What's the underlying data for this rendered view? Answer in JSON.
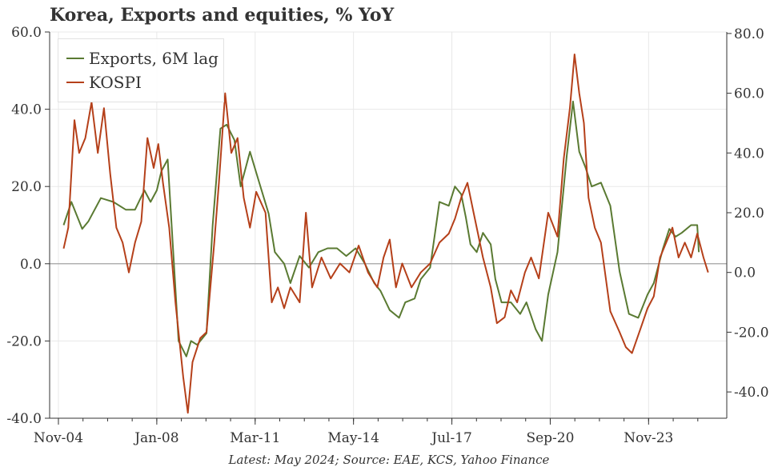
{
  "chart_data": {
    "type": "line",
    "title": "Korea, Exports and equities, % YoY",
    "footer": "Latest: May 2024; Source: EAE, KCS, Yahoo Finance",
    "xlabel": "",
    "x_ticks": [
      "Nov-04",
      "Jan-08",
      "Mar-11",
      "May-14",
      "Jul-17",
      "Sep-20",
      "Nov-23"
    ],
    "y_left": {
      "ylim": [
        -40,
        60
      ],
      "ticks": [
        "-40.0",
        "-20.0",
        "0.0",
        "20.0",
        "40.0",
        "60.0"
      ]
    },
    "y_right": {
      "ylim": [
        -48.8,
        80.5
      ],
      "ticks": [
        "-40.0",
        "-20.0",
        "0.0",
        "20.0",
        "40.0",
        "60.0",
        "80.0"
      ]
    },
    "grid": true,
    "legend": "top-left",
    "series": [
      {
        "name": "Exports, 6M lag",
        "axis": "left",
        "color": "#5a7a32",
        "points": [
          [
            2005.0,
            10.0
          ],
          [
            2005.25,
            16.0
          ],
          [
            2005.6,
            9.0
          ],
          [
            2005.8,
            11.0
          ],
          [
            2006.2,
            17.0
          ],
          [
            2006.6,
            16.0
          ],
          [
            2007.0,
            14.0
          ],
          [
            2007.3,
            14.0
          ],
          [
            2007.6,
            19.0
          ],
          [
            2007.8,
            16.0
          ],
          [
            2008.0,
            19.0
          ],
          [
            2008.15,
            24.0
          ],
          [
            2008.35,
            27.0
          ],
          [
            2008.7,
            -20.0
          ],
          [
            2008.95,
            -24.0
          ],
          [
            2009.1,
            -20.0
          ],
          [
            2009.3,
            -21.0
          ],
          [
            2009.6,
            -18.0
          ],
          [
            2009.8,
            10.0
          ],
          [
            2010.05,
            35.0
          ],
          [
            2010.25,
            36.0
          ],
          [
            2010.5,
            32.0
          ],
          [
            2010.7,
            20.0
          ],
          [
            2011.0,
            29.0
          ],
          [
            2011.3,
            21.0
          ],
          [
            2011.6,
            13.0
          ],
          [
            2011.8,
            3.0
          ],
          [
            2012.1,
            0.0
          ],
          [
            2012.3,
            -5.0
          ],
          [
            2012.6,
            2.0
          ],
          [
            2012.9,
            -1.0
          ],
          [
            2013.2,
            3.0
          ],
          [
            2013.5,
            4.0
          ],
          [
            2013.8,
            4.0
          ],
          [
            2014.1,
            2.0
          ],
          [
            2014.4,
            4.0
          ],
          [
            2014.7,
            0.0
          ],
          [
            2015.0,
            -5.0
          ],
          [
            2015.2,
            -7.0
          ],
          [
            2015.5,
            -12.0
          ],
          [
            2015.8,
            -14.0
          ],
          [
            2016.0,
            -10.0
          ],
          [
            2016.3,
            -9.0
          ],
          [
            2016.5,
            -4.0
          ],
          [
            2016.8,
            -1.0
          ],
          [
            2017.1,
            16.0
          ],
          [
            2017.4,
            15.0
          ],
          [
            2017.6,
            20.0
          ],
          [
            2017.8,
            18.0
          ],
          [
            2017.95,
            12.0
          ],
          [
            2018.1,
            5.0
          ],
          [
            2018.3,
            3.0
          ],
          [
            2018.5,
            8.0
          ],
          [
            2018.75,
            5.0
          ],
          [
            2018.9,
            -4.0
          ],
          [
            2019.1,
            -10.0
          ],
          [
            2019.4,
            -10.0
          ],
          [
            2019.7,
            -13.0
          ],
          [
            2019.9,
            -10.0
          ],
          [
            2020.2,
            -17.0
          ],
          [
            2020.4,
            -20.0
          ],
          [
            2020.6,
            -8.0
          ],
          [
            2020.9,
            3.0
          ],
          [
            2021.2,
            28.0
          ],
          [
            2021.4,
            42.0
          ],
          [
            2021.6,
            29.0
          ],
          [
            2021.8,
            25.0
          ],
          [
            2022.0,
            20.0
          ],
          [
            2022.3,
            21.0
          ],
          [
            2022.6,
            15.0
          ],
          [
            2022.9,
            -2.0
          ],
          [
            2023.2,
            -13.0
          ],
          [
            2023.5,
            -14.0
          ],
          [
            2023.8,
            -8.0
          ],
          [
            2024.0,
            -5.0
          ],
          [
            2024.3,
            4.0
          ],
          [
            2024.5,
            9.0
          ],
          [
            2024.7,
            7.0
          ],
          [
            2024.9,
            8.0
          ],
          [
            2025.2,
            10.0
          ],
          [
            2025.4,
            10.0
          ],
          [
            2025.45,
            3.0
          ]
        ]
      },
      {
        "name": "KOSPI",
        "axis": "right",
        "color": "#b5401a",
        "points": [
          [
            2005.0,
            8.0
          ],
          [
            2005.15,
            15.0
          ],
          [
            2005.35,
            51.0
          ],
          [
            2005.5,
            40.0
          ],
          [
            2005.7,
            45.0
          ],
          [
            2005.9,
            57.0
          ],
          [
            2006.1,
            40.0
          ],
          [
            2006.3,
            55.0
          ],
          [
            2006.5,
            33.0
          ],
          [
            2006.7,
            15.0
          ],
          [
            2006.9,
            10.0
          ],
          [
            2007.1,
            0.0
          ],
          [
            2007.3,
            10.0
          ],
          [
            2007.5,
            17.0
          ],
          [
            2007.7,
            45.0
          ],
          [
            2007.9,
            35.0
          ],
          [
            2008.05,
            43.0
          ],
          [
            2008.2,
            30.0
          ],
          [
            2008.4,
            15.0
          ],
          [
            2008.6,
            -10.0
          ],
          [
            2008.85,
            -35.0
          ],
          [
            2009.0,
            -47.0
          ],
          [
            2009.15,
            -30.0
          ],
          [
            2009.4,
            -22.0
          ],
          [
            2009.6,
            -20.0
          ],
          [
            2009.85,
            10.0
          ],
          [
            2010.0,
            30.0
          ],
          [
            2010.2,
            60.0
          ],
          [
            2010.4,
            40.0
          ],
          [
            2010.6,
            45.0
          ],
          [
            2010.8,
            25.0
          ],
          [
            2011.0,
            15.0
          ],
          [
            2011.2,
            27.0
          ],
          [
            2011.5,
            20.0
          ],
          [
            2011.7,
            -10.0
          ],
          [
            2011.9,
            -5.0
          ],
          [
            2012.1,
            -12.0
          ],
          [
            2012.3,
            -5.0
          ],
          [
            2012.6,
            -10.0
          ],
          [
            2012.8,
            20.0
          ],
          [
            2013.0,
            -5.0
          ],
          [
            2013.3,
            5.0
          ],
          [
            2013.6,
            -2.0
          ],
          [
            2013.9,
            3.0
          ],
          [
            2014.2,
            0.0
          ],
          [
            2014.5,
            9.0
          ],
          [
            2014.8,
            0.0
          ],
          [
            2015.1,
            -5.0
          ],
          [
            2015.3,
            5.0
          ],
          [
            2015.5,
            11.0
          ],
          [
            2015.7,
            -5.0
          ],
          [
            2015.9,
            3.0
          ],
          [
            2016.2,
            -5.0
          ],
          [
            2016.5,
            0.0
          ],
          [
            2016.8,
            3.0
          ],
          [
            2017.1,
            10.0
          ],
          [
            2017.4,
            13.0
          ],
          [
            2017.6,
            18.0
          ],
          [
            2017.8,
            25.0
          ],
          [
            2018.0,
            30.0
          ],
          [
            2018.2,
            20.0
          ],
          [
            2018.5,
            5.0
          ],
          [
            2018.75,
            -5.0
          ],
          [
            2018.95,
            -17.0
          ],
          [
            2019.2,
            -15.0
          ],
          [
            2019.4,
            -6.0
          ],
          [
            2019.6,
            -10.0
          ],
          [
            2019.85,
            0.0
          ],
          [
            2020.05,
            5.0
          ],
          [
            2020.3,
            -2.0
          ],
          [
            2020.6,
            20.0
          ],
          [
            2020.9,
            12.0
          ],
          [
            2021.1,
            38.0
          ],
          [
            2021.3,
            55.0
          ],
          [
            2021.45,
            73.0
          ],
          [
            2021.6,
            60.0
          ],
          [
            2021.75,
            50.0
          ],
          [
            2021.9,
            25.0
          ],
          [
            2022.1,
            15.0
          ],
          [
            2022.3,
            10.0
          ],
          [
            2022.6,
            -13.0
          ],
          [
            2022.9,
            -20.0
          ],
          [
            2023.1,
            -25.0
          ],
          [
            2023.3,
            -27.0
          ],
          [
            2023.6,
            -18.0
          ],
          [
            2023.8,
            -12.0
          ],
          [
            2024.0,
            -8.0
          ],
          [
            2024.2,
            5.0
          ],
          [
            2024.4,
            10.0
          ],
          [
            2024.6,
            15.0
          ],
          [
            2024.8,
            5.0
          ],
          [
            2025.0,
            10.0
          ],
          [
            2025.2,
            5.0
          ],
          [
            2025.4,
            13.0
          ],
          [
            2025.6,
            5.0
          ],
          [
            2025.75,
            0.0
          ]
        ]
      }
    ]
  }
}
